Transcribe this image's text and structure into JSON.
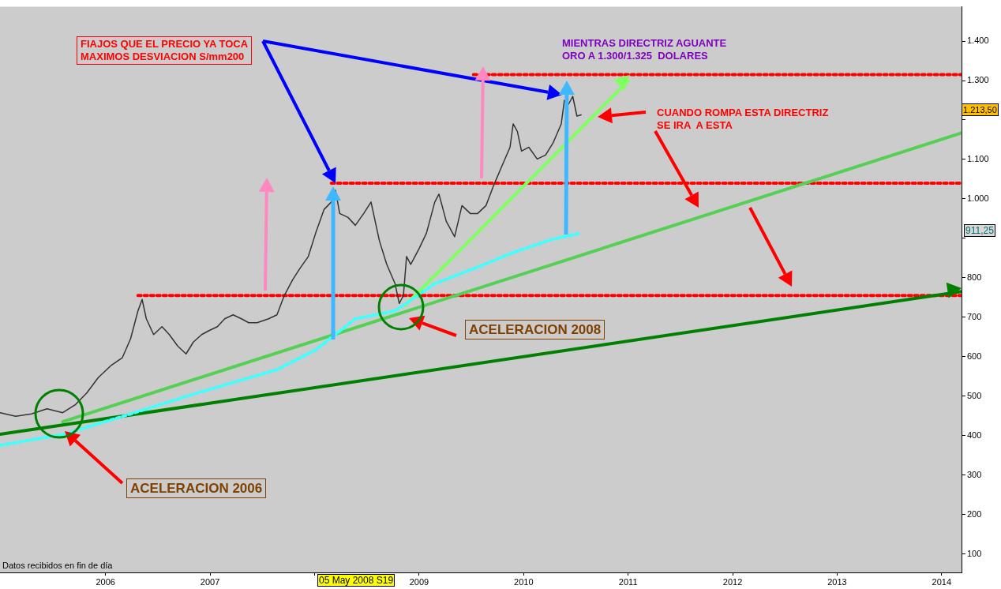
{
  "chart_data": {
    "type": "line",
    "xlim": [
      2004.99,
      2014.19
    ],
    "ylim": [
      53,
      1487
    ],
    "xticks": [
      2006,
      2007,
      {
        "value": 2008,
        "label": null
      },
      2009,
      2010,
      2011,
      2012,
      2013,
      2014
    ],
    "yticks": [
      100,
      200,
      300,
      400,
      500,
      600,
      700,
      800,
      {
        "value": 900,
        "label": null
      },
      {
        "value": 1000,
        "label": "1.000"
      },
      {
        "value": 1100,
        "label": "1.100"
      },
      {
        "value": 1200,
        "label": null
      },
      {
        "value": 1300,
        "label": "1.300"
      },
      {
        "value": 1400,
        "label": "1.400"
      }
    ],
    "legend": false,
    "grid": false,
    "series": [
      {
        "color": "#333333",
        "line_style": "solid",
        "x": [
          2004.99,
          2005.14,
          2005.29,
          2005.44,
          2005.59,
          2005.71,
          2005.82,
          2005.93,
          2006.05,
          2006.16,
          2006.24,
          2006.31,
          2006.35,
          2006.39,
          2006.46,
          2006.54,
          2006.61,
          2006.69,
          2006.77,
          2006.84,
          2006.92,
          2006.99,
          2007.07,
          2007.14,
          2007.22,
          2007.3,
          2007.37,
          2007.45,
          2007.56,
          2007.64,
          2007.71,
          2007.79,
          2007.86,
          2007.94,
          2008.01,
          2008.09,
          2008.16,
          2008.2,
          2008.24,
          2008.32,
          2008.39,
          2008.47,
          2008.54,
          2008.62,
          2008.69,
          2008.77,
          2008.81,
          2008.85,
          2008.88,
          2008.92,
          2009.0,
          2009.07,
          2009.15,
          2009.19,
          2009.26,
          2009.34,
          2009.41,
          2009.49,
          2009.56,
          2009.64,
          2009.71,
          2009.79,
          2009.87,
          2009.9,
          2009.94,
          2009.98,
          2010.05,
          2010.13,
          2010.21,
          2010.28,
          2010.36,
          2010.39,
          2010.43,
          2010.47,
          2010.51,
          2010.55
        ],
        "values": [
          458,
          449,
          455,
          468,
          458,
          478,
          508,
          547,
          577,
          597,
          646,
          716,
          745,
          696,
          656,
          676,
          656,
          627,
          607,
          637,
          656,
          666,
          676,
          696,
          706,
          696,
          686,
          686,
          696,
          706,
          755,
          795,
          824,
          854,
          913,
          973,
          992,
          1022,
          963,
          953,
          933,
          963,
          992,
          894,
          834,
          785,
          735,
          755,
          854,
          834,
          874,
          913,
          992,
          1012,
          943,
          904,
          983,
          963,
          963,
          983,
          1032,
          1082,
          1131,
          1190,
          1171,
          1121,
          1131,
          1101,
          1111,
          1141,
          1190,
          1250,
          1240,
          1260,
          1210,
          1213
        ]
      },
      {
        "color": "#40ffff",
        "line_style": "dotted",
        "x": [
          2004.99,
          2005.59,
          2006.12,
          2006.88,
          2007.64,
          2008.01,
          2008.39,
          2008.77,
          2009.15,
          2009.53,
          2009.9,
          2010.28,
          2010.55
        ],
        "values": [
          375,
          403,
          445,
          508,
          567,
          617,
          696,
          716,
          785,
          824,
          864,
          898,
          913
        ]
      },
      {
        "color": "#008000",
        "line_style": "solid",
        "x": [
          2004.99,
          2014.19
        ],
        "values": [
          403,
          765
        ]
      },
      {
        "color": "#55d055",
        "line_style": "solid",
        "x": [
          2005.59,
          2014.19
        ],
        "values": [
          435,
          1167
        ]
      },
      {
        "color": "#80ff60",
        "line_style": "solid",
        "x": [
          2008.87,
          2011.0
        ],
        "values": [
          731,
          1299
        ]
      },
      {
        "color": "#ff0000",
        "line_style": "dotted",
        "x": [
          2009.52,
          2014.19
        ],
        "values": [
          1315,
          1315
        ]
      },
      {
        "color": "#ff0000",
        "line_style": "dotted",
        "x": [
          2008.16,
          2014.19
        ],
        "values": [
          1040,
          1040
        ]
      },
      {
        "color": "#ff0000",
        "line_style": "dotted",
        "x": [
          2006.31,
          2014.19
        ],
        "values": [
          755,
          755
        ]
      }
    ],
    "annotations": [
      "FIAJOS QUE EL PRECIO YA TOCA\nMAXIMOS DESVIACION S/mm200",
      "MIENTRAS DIRECTRIZ AGUANTE\nORO A 1.300/1.325  DOLARES",
      "CUANDO ROMPA ESTA DIRECTRIZ\nSE IRA  A ESTA",
      "ACELERACION 2008",
      "ACELERACION 2006",
      "Datos recibidos en fin de día",
      "05 May 2008 S19",
      "1.213,50",
      "911,25"
    ]
  }
}
